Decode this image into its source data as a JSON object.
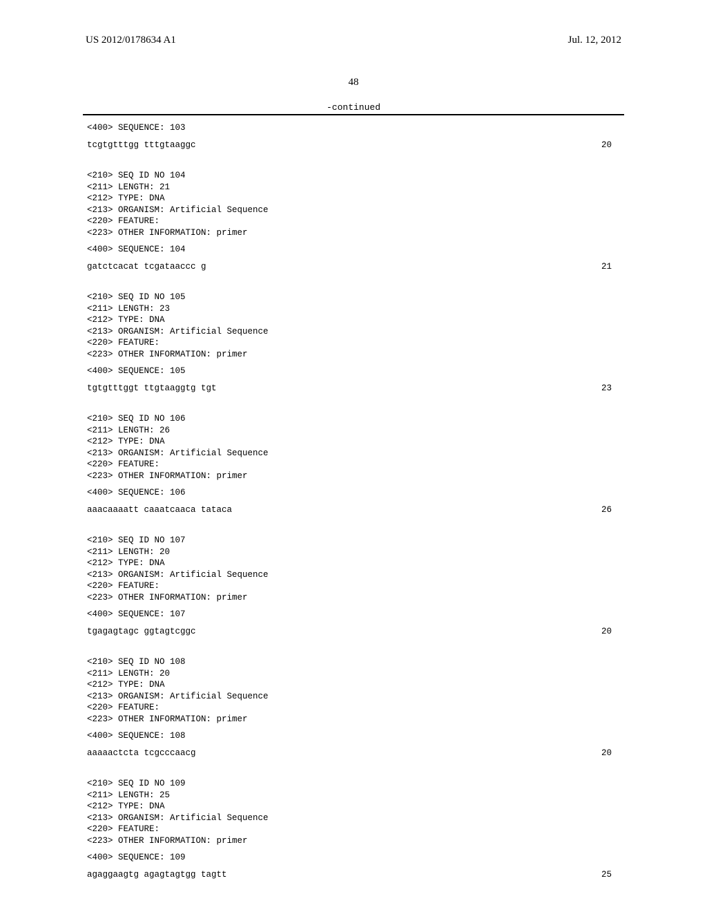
{
  "header": {
    "left": "US 2012/0178634 A1",
    "right": "Jul. 12, 2012"
  },
  "page_number": "48",
  "continued_label": "-continued",
  "entries": [
    {
      "pre": [
        "<400> SEQUENCE: 103"
      ],
      "seq": "tcgtgtttgg tttgtaaggc",
      "len": "20",
      "post_gap": true
    },
    {
      "pre": [
        "<210> SEQ ID NO 104",
        "<211> LENGTH: 21",
        "<212> TYPE: DNA",
        "<213> ORGANISM: Artificial Sequence",
        "<220> FEATURE:",
        "<223> OTHER INFORMATION: primer",
        "",
        "<400> SEQUENCE: 104"
      ],
      "seq": "gatctcacat tcgataaccc g",
      "len": "21",
      "post_gap": true
    },
    {
      "pre": [
        "<210> SEQ ID NO 105",
        "<211> LENGTH: 23",
        "<212> TYPE: DNA",
        "<213> ORGANISM: Artificial Sequence",
        "<220> FEATURE:",
        "<223> OTHER INFORMATION: primer",
        "",
        "<400> SEQUENCE: 105"
      ],
      "seq": "tgtgtttggt ttgtaaggtg tgt",
      "len": "23",
      "post_gap": true
    },
    {
      "pre": [
        "<210> SEQ ID NO 106",
        "<211> LENGTH: 26",
        "<212> TYPE: DNA",
        "<213> ORGANISM: Artificial Sequence",
        "<220> FEATURE:",
        "<223> OTHER INFORMATION: primer",
        "",
        "<400> SEQUENCE: 106"
      ],
      "seq": "aaacaaaatt caaatcaaca tataca",
      "len": "26",
      "post_gap": true
    },
    {
      "pre": [
        "<210> SEQ ID NO 107",
        "<211> LENGTH: 20",
        "<212> TYPE: DNA",
        "<213> ORGANISM: Artificial Sequence",
        "<220> FEATURE:",
        "<223> OTHER INFORMATION: primer",
        "",
        "<400> SEQUENCE: 107"
      ],
      "seq": "tgagagtagc ggtagtcggc",
      "len": "20",
      "post_gap": true
    },
    {
      "pre": [
        "<210> SEQ ID NO 108",
        "<211> LENGTH: 20",
        "<212> TYPE: DNA",
        "<213> ORGANISM: Artificial Sequence",
        "<220> FEATURE:",
        "<223> OTHER INFORMATION: primer",
        "",
        "<400> SEQUENCE: 108"
      ],
      "seq": "aaaaactcta tcgcccaacg",
      "len": "20",
      "post_gap": true
    },
    {
      "pre": [
        "<210> SEQ ID NO 109",
        "<211> LENGTH: 25",
        "<212> TYPE: DNA",
        "<213> ORGANISM: Artificial Sequence",
        "<220> FEATURE:",
        "<223> OTHER INFORMATION: primer",
        "",
        "<400> SEQUENCE: 109"
      ],
      "seq": "agaggaagtg agagtagtgg tagtt",
      "len": "25",
      "post_gap": false
    }
  ]
}
